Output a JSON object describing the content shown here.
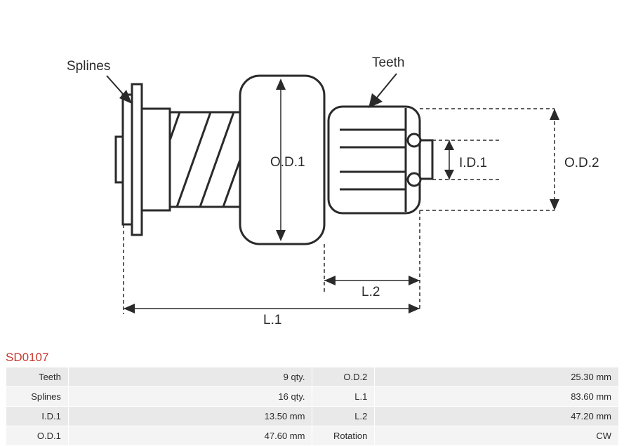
{
  "part_number": "SD0107",
  "part_number_color": "#c8372d",
  "diagram": {
    "labels": {
      "splines": "Splines",
      "teeth": "Teeth",
      "od1": "O.D.1",
      "id1": "I.D.1",
      "od2": "O.D.2",
      "l1": "L.1",
      "l2": "L.2"
    },
    "styling": {
      "stroke_color": "#2a2a2a",
      "stroke_width_main": 3,
      "stroke_width_thin": 1.5,
      "dash_pattern": "5,4",
      "label_fontsize": 19,
      "background": "#ffffff"
    }
  },
  "table": {
    "bg_odd": "#e9e9e9",
    "bg_even": "#f4f4f4",
    "text_color": "#2a2a2a",
    "rows": [
      {
        "label1": "Teeth",
        "value1": "9 qty.",
        "label2": "O.D.2",
        "value2": "25.30 mm"
      },
      {
        "label1": "Splines",
        "value1": "16 qty.",
        "label2": "L.1",
        "value2": "83.60 mm"
      },
      {
        "label1": "I.D.1",
        "value1": "13.50 mm",
        "label2": "L.2",
        "value2": "47.20 mm"
      },
      {
        "label1": "O.D.1",
        "value1": "47.60 mm",
        "label2": "Rotation",
        "value2": "CW"
      }
    ]
  }
}
